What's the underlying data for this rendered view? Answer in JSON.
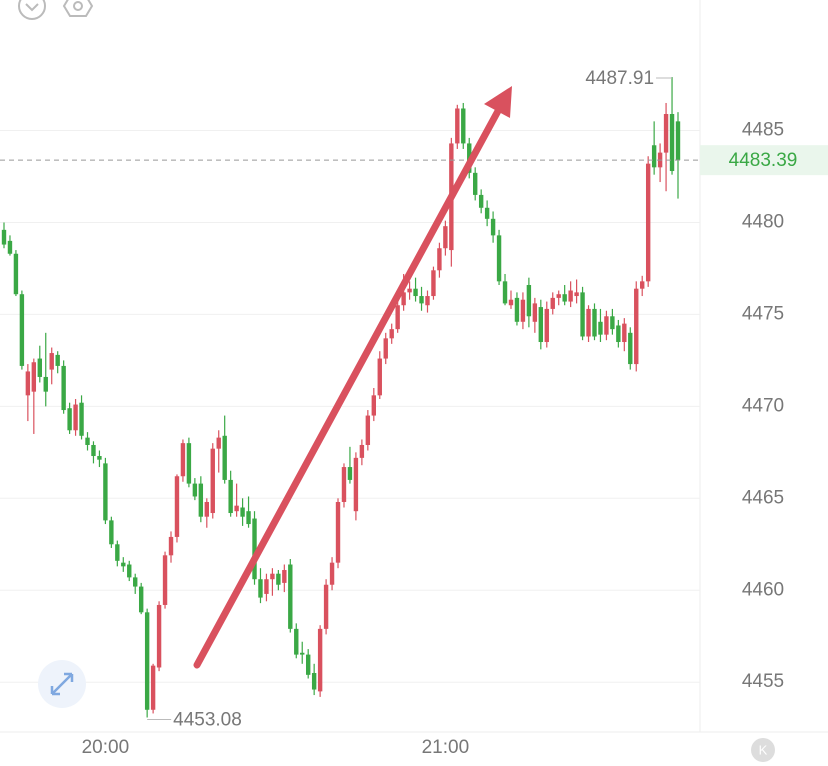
{
  "chart_data": {
    "type": "candlestick",
    "ohlc": [
      [
        4479.6,
        4480.0,
        4478.6,
        4478.8
      ],
      [
        4479.0,
        4479.3,
        4478.2,
        4478.3
      ],
      [
        4478.3,
        4478.5,
        4476.0,
        4476.1
      ],
      [
        4476.1,
        4476.3,
        4472.0,
        4472.2
      ],
      [
        4470.6,
        4472.3,
        4469.2,
        4471.9
      ],
      [
        4470.8,
        4472.6,
        4468.5,
        4472.4
      ],
      [
        4472.6,
        4473.3,
        4471.3,
        4471.6
      ],
      [
        4471.6,
        4474.0,
        4470.0,
        4470.8
      ],
      [
        4472.0,
        4473.2,
        4471.2,
        4472.9
      ],
      [
        4472.8,
        4473.0,
        4471.8,
        4472.2
      ],
      [
        4472.2,
        4472.5,
        4469.6,
        4469.8
      ],
      [
        4469.9,
        4470.2,
        4468.5,
        4468.7
      ],
      [
        4468.7,
        4470.4,
        4468.4,
        4470.1
      ],
      [
        4470.2,
        4470.6,
        4468.2,
        4468.4
      ],
      [
        4468.3,
        4468.6,
        4467.6,
        4467.9
      ],
      [
        4467.9,
        4468.1,
        4466.9,
        4467.3
      ],
      [
        4467.3,
        4467.6,
        4466.7,
        4467.1
      ],
      [
        4466.9,
        4467.2,
        4463.6,
        4463.8
      ],
      [
        4463.8,
        4464.0,
        4462.3,
        4462.5
      ],
      [
        4462.5,
        4462.7,
        4461.3,
        4461.6
      ],
      [
        4461.5,
        4461.8,
        4461.0,
        4461.3
      ],
      [
        4461.4,
        4461.6,
        4460.5,
        4460.7
      ],
      [
        4460.7,
        4460.9,
        4459.8,
        4460.2
      ],
      [
        4460.2,
        4460.4,
        4458.7,
        4458.8
      ],
      [
        4458.8,
        4459.0,
        4453.08,
        4453.5
      ],
      [
        4453.5,
        4456.0,
        4453.3,
        4455.9
      ],
      [
        4455.8,
        4459.4,
        4455.6,
        4459.2
      ],
      [
        4459.2,
        4462.1,
        4459.0,
        4461.9
      ],
      [
        4461.9,
        4463.2,
        4461.5,
        4462.9
      ],
      [
        4462.9,
        4466.3,
        4462.6,
        4466.2
      ],
      [
        4466.2,
        4468.2,
        4465.9,
        4468.0
      ],
      [
        4468.0,
        4468.3,
        4465.6,
        4465.8
      ],
      [
        4465.8,
        4466.1,
        4464.9,
        4465.1
      ],
      [
        4465.8,
        4466.2,
        4463.7,
        4464.0
      ],
      [
        4464.0,
        4465.0,
        4463.4,
        4464.8
      ],
      [
        4464.2,
        4468.0,
        4463.9,
        4467.7
      ],
      [
        4467.7,
        4468.7,
        4466.4,
        4468.3
      ],
      [
        4468.4,
        4469.5,
        4465.8,
        4466.0
      ],
      [
        4466.0,
        4466.5,
        4464.0,
        4464.2
      ],
      [
        4464.3,
        4465.8,
        4464.0,
        4464.6
      ],
      [
        4464.5,
        4465.0,
        4463.5,
        4464.0
      ],
      [
        4464.3,
        4465.1,
        4463.4,
        4463.6
      ],
      [
        4463.9,
        4464.3,
        4460.3,
        4460.6
      ],
      [
        4460.6,
        4461.2,
        4459.3,
        4459.6
      ],
      [
        4459.8,
        4460.9,
        4459.4,
        4460.6
      ],
      [
        4460.6,
        4461.2,
        4459.7,
        4460.9
      ],
      [
        4460.9,
        4461.1,
        4460.0,
        4460.3
      ],
      [
        4460.4,
        4461.4,
        4459.9,
        4461.1
      ],
      [
        4461.4,
        4461.7,
        4457.7,
        4457.9
      ],
      [
        4457.9,
        4458.2,
        4456.3,
        4456.5
      ],
      [
        4456.6,
        4457.2,
        4456.0,
        4456.5
      ],
      [
        4456.5,
        4456.8,
        4455.2,
        4455.4
      ],
      [
        4455.5,
        4456.0,
        4454.3,
        4454.6
      ],
      [
        4454.5,
        4458.1,
        4454.2,
        4457.9
      ],
      [
        4457.9,
        4460.6,
        4457.6,
        4460.3
      ],
      [
        4460.3,
        4461.8,
        4460.0,
        4461.5
      ],
      [
        4461.5,
        4465.0,
        4461.2,
        4464.8
      ],
      [
        4464.8,
        4466.9,
        4464.5,
        4466.7
      ],
      [
        4466.7,
        4467.8,
        4465.8,
        4466.0
      ],
      [
        4464.3,
        4467.5,
        4463.8,
        4467.2
      ],
      [
        4467.2,
        4468.2,
        4466.8,
        4467.9
      ],
      [
        4467.9,
        4469.8,
        4467.6,
        4469.5
      ],
      [
        4469.5,
        4471.0,
        4469.2,
        4470.6
      ],
      [
        4470.6,
        4473.0,
        4470.4,
        4472.6
      ],
      [
        4472.6,
        4474.0,
        4472.3,
        4473.7
      ],
      [
        4473.7,
        4474.5,
        4473.4,
        4474.2
      ],
      [
        4474.2,
        4475.8,
        4474.0,
        4475.5
      ],
      [
        4475.5,
        4477.2,
        4475.2,
        4476.2
      ],
      [
        4476.2,
        4476.8,
        4475.8,
        4476.4
      ],
      [
        4476.4,
        4477.0,
        4475.7,
        4476.0
      ],
      [
        4476.0,
        4476.5,
        4475.2,
        4475.6
      ],
      [
        4475.5,
        4476.3,
        4475.1,
        4476.0
      ],
      [
        4476.0,
        4477.6,
        4475.8,
        4477.4
      ],
      [
        4477.4,
        4478.9,
        4477.0,
        4478.6
      ],
      [
        4478.6,
        4480.1,
        4478.2,
        4479.8
      ],
      [
        4478.5,
        4484.6,
        4477.6,
        4484.3
      ],
      [
        4484.3,
        4486.4,
        4484.0,
        4486.2
      ],
      [
        4486.2,
        4486.5,
        4484.0,
        4484.3
      ],
      [
        4484.3,
        4484.6,
        4482.4,
        4482.7
      ],
      [
        4482.7,
        4483.0,
        4481.2,
        4481.5
      ],
      [
        4481.5,
        4481.8,
        4480.5,
        4480.8
      ],
      [
        4480.8,
        4481.2,
        4479.8,
        4480.2
      ],
      [
        4480.2,
        4480.6,
        4478.9,
        4479.3
      ],
      [
        4479.3,
        4479.6,
        4476.6,
        4476.8
      ],
      [
        4476.8,
        4477.2,
        4475.5,
        4475.6
      ],
      [
        4475.5,
        4476.3,
        4475.3,
        4475.8
      ],
      [
        4475.9,
        4476.2,
        4474.4,
        4474.6
      ],
      [
        4474.6,
        4476.2,
        4474.2,
        4475.8
      ],
      [
        4476.6,
        4477.0,
        4474.3,
        4474.9
      ],
      [
        4474.6,
        4475.9,
        4474.0,
        4475.6
      ],
      [
        4475.4,
        4475.8,
        4473.1,
        4473.5
      ],
      [
        4473.5,
        4475.7,
        4473.2,
        4475.3
      ],
      [
        4475.3,
        4476.2,
        4475.0,
        4475.9
      ],
      [
        4475.9,
        4476.3,
        4475.5,
        4476.1
      ],
      [
        4476.1,
        4476.6,
        4475.5,
        4475.7
      ],
      [
        4475.7,
        4476.8,
        4475.4,
        4476.3
      ],
      [
        4476.0,
        4476.9,
        4475.6,
        4476.2
      ],
      [
        4476.2,
        4476.5,
        4473.6,
        4473.8
      ],
      [
        4473.8,
        4475.5,
        4473.5,
        4475.3
      ],
      [
        4475.3,
        4475.6,
        4473.6,
        4473.8
      ],
      [
        4474.6,
        4475.3,
        4473.5,
        4473.9
      ],
      [
        4473.9,
        4475.2,
        4473.6,
        4474.9
      ],
      [
        4474.9,
        4475.3,
        4473.9,
        4474.2
      ],
      [
        4474.4,
        4474.7,
        4473.2,
        4473.5
      ],
      [
        4473.5,
        4474.8,
        4473.0,
        4474.5
      ],
      [
        4474.0,
        4474.3,
        4472.0,
        4472.3
      ],
      [
        4472.3,
        4476.8,
        4471.9,
        4476.4
      ],
      [
        4476.4,
        4477.1,
        4476.0,
        4476.8
      ],
      [
        4476.8,
        4483.6,
        4476.5,
        4483.2
      ],
      [
        4484.2,
        4485.5,
        4482.6,
        4483.0
      ],
      [
        4483.0,
        4484.3,
        4482.2,
        4483.8
      ],
      [
        4483.8,
        4486.5,
        4481.7,
        4485.9
      ],
      [
        4485.9,
        4487.91,
        4482.6,
        4482.8
      ],
      [
        4485.5,
        4486.0,
        4481.3,
        4483.39
      ]
    ],
    "up_color": "#d9515e",
    "down_color": "#3aa845",
    "ylim": [
      4452.4,
      4492.1
    ],
    "yticks": [
      4455,
      4460,
      4465,
      4470,
      4475,
      4480,
      4485
    ],
    "grid": true,
    "xticks": [
      {
        "value": 17,
        "label": "20:00"
      },
      {
        "value": 74,
        "label": "21:00"
      }
    ],
    "high_annotation": {
      "index": 112,
      "value": 4487.91
    },
    "low_annotation": {
      "index": 24,
      "value": 4453.08
    },
    "last_price": 4483.39,
    "badge": "K"
  }
}
